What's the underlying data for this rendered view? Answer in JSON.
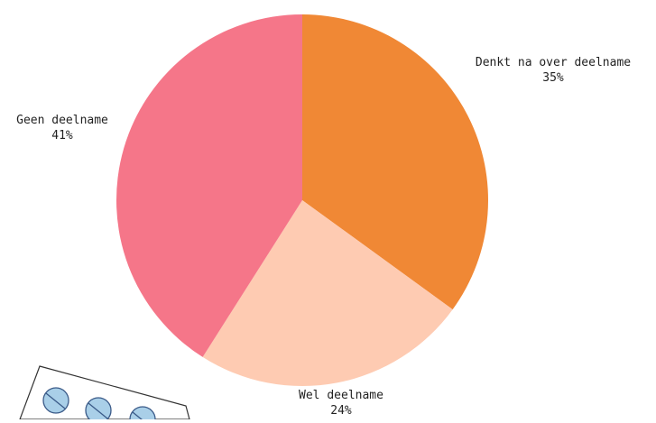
{
  "chart_data": {
    "type": "pie",
    "title": "",
    "slices": [
      {
        "label": "Denkt na over deelname",
        "value": 35,
        "display": "35%",
        "color": "#f08835"
      },
      {
        "label": "Wel deelname",
        "value": 24,
        "display": "24%",
        "color": "#fecbb2"
      },
      {
        "label": "Geen deelname",
        "value": 41,
        "display": "41%",
        "color": "#f57689"
      }
    ],
    "start": "12 o'clock",
    "direction": "clockwise",
    "labels_outside": true,
    "legend": "none"
  },
  "decoration": {
    "image": "blister-pill-pack",
    "pill_color": "#a9cfe8",
    "pill_outline": "#3a5a88",
    "card_color": "#ffffff"
  }
}
